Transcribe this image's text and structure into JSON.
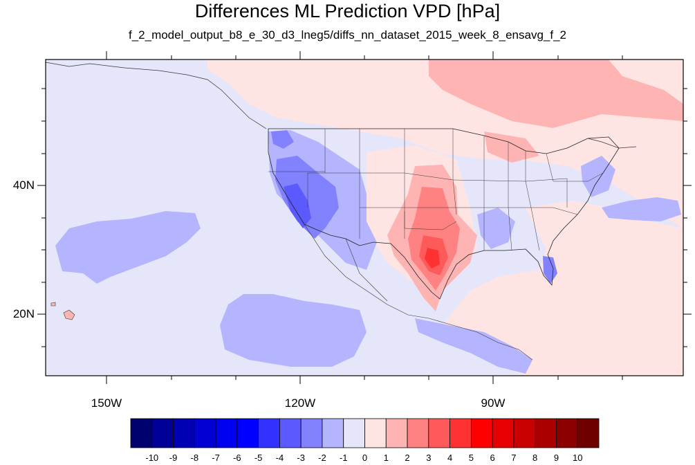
{
  "title": "Differences ML Prediction VPD [hPa]",
  "subtitle": "f_2_model_output_b8_e_30_d3_lneg5/diffs_nn_dataset_2015_week_8_ensavg_f_2",
  "map": {
    "lon_labels": [
      "150W",
      "120W",
      "90W"
    ],
    "lat_labels": [
      "40N",
      "20N"
    ],
    "lon_range": [
      -160,
      -62
    ],
    "lat_range": [
      11,
      60
    ]
  },
  "colorbar": {
    "labels": [
      "-10",
      "-9",
      "-8",
      "-7",
      "-6",
      "-5",
      "-4",
      "-3",
      "-2",
      "-1",
      "0",
      "1",
      "2",
      "3",
      "4",
      "5",
      "6",
      "7",
      "8",
      "9",
      "10"
    ],
    "colors": [
      "#00006e",
      "#000096",
      "#0000b4",
      "#0000d2",
      "#0000f0",
      "#0000ff",
      "#3232ff",
      "#5a5aff",
      "#8282ff",
      "#b4b4ff",
      "#e6e6fa",
      "#ffe4e4",
      "#ffb4b4",
      "#ff8282",
      "#ff5a5a",
      "#ff3232",
      "#ff0000",
      "#e60000",
      "#c80000",
      "#aa0000",
      "#8c0000",
      "#6e0000"
    ]
  }
}
